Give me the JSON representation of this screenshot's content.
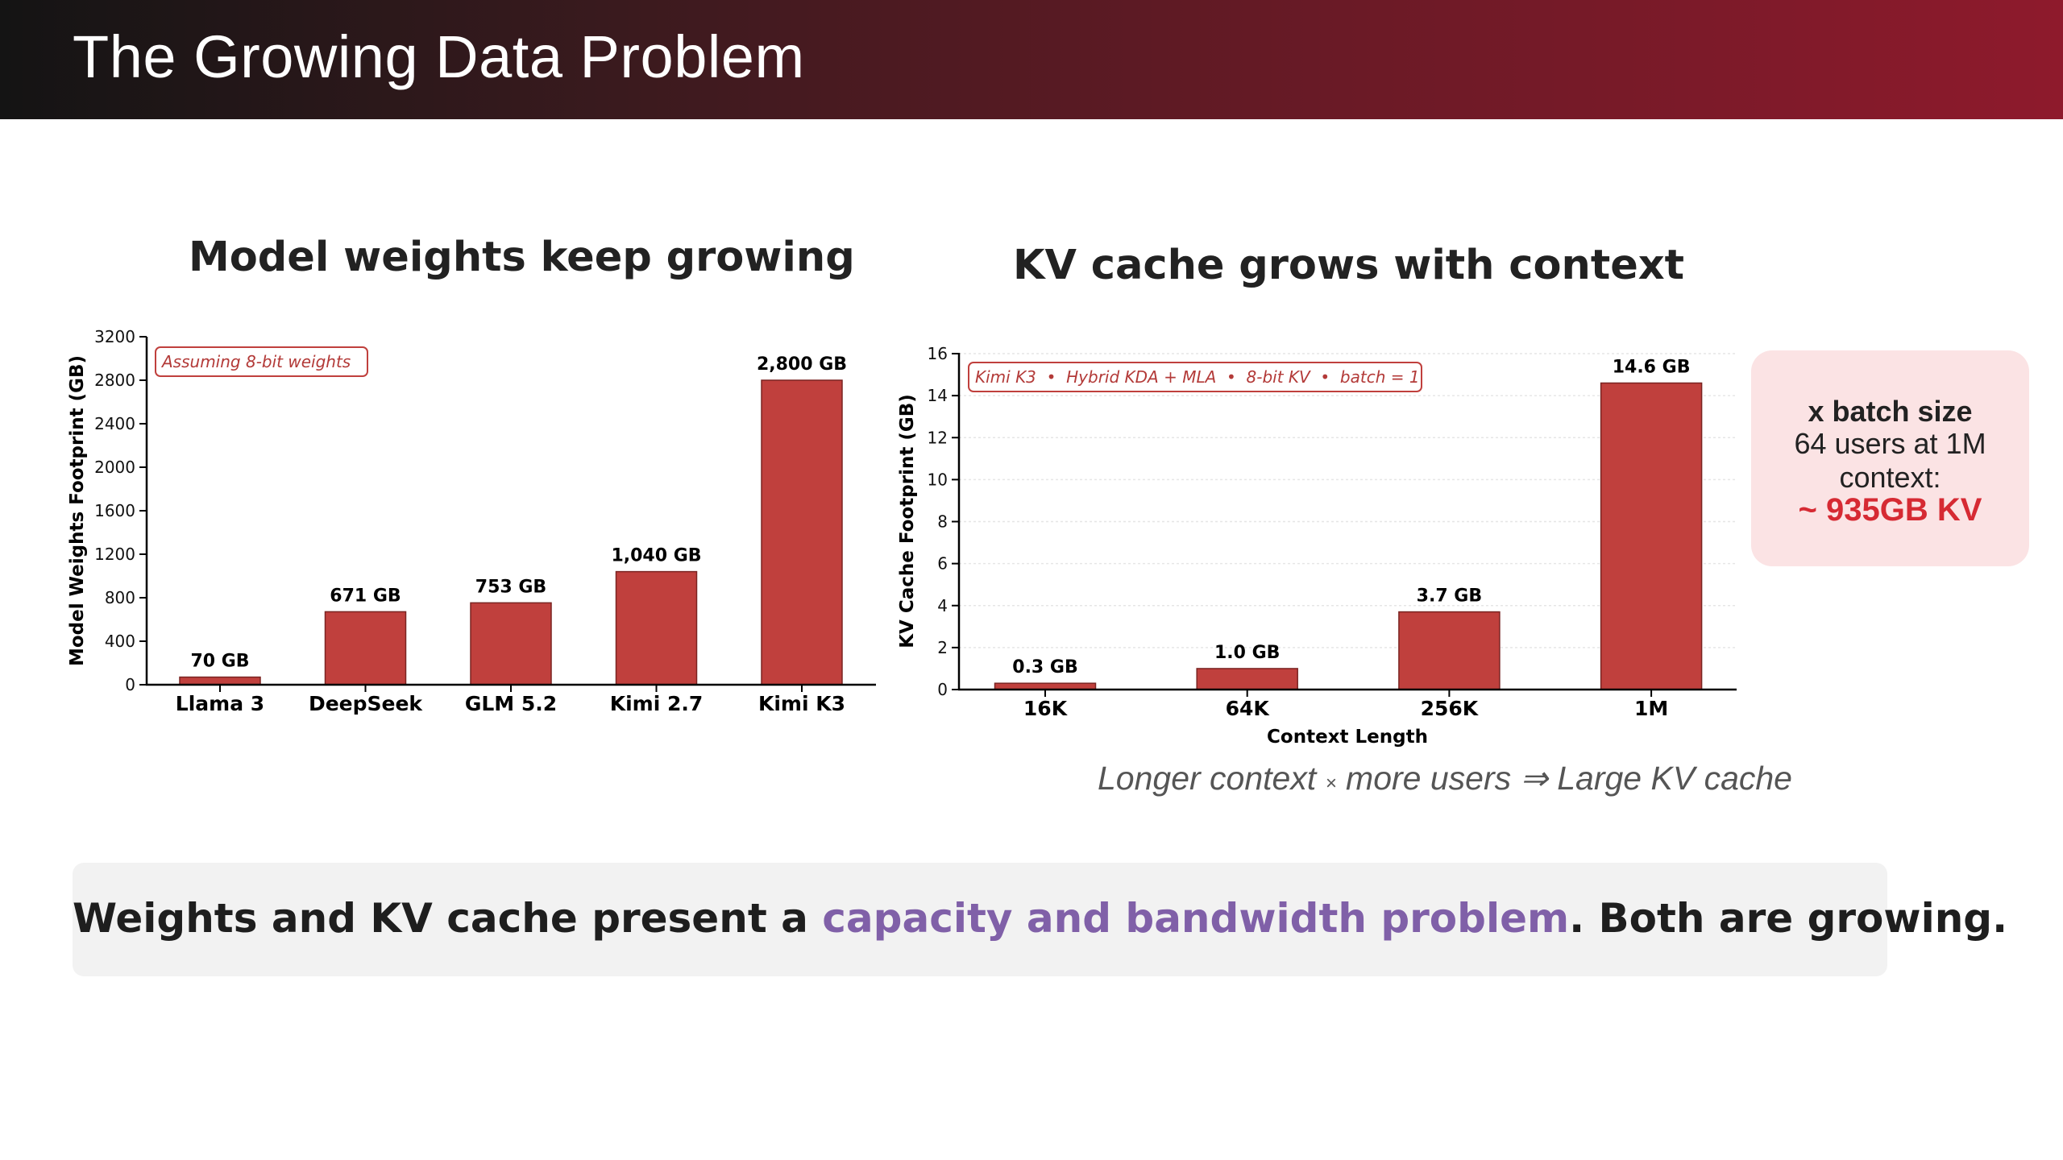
{
  "page": {
    "title": "The Growing Data Problem"
  },
  "left_chart": {
    "title": "Model weights keep growing",
    "note": "Assuming 8-bit weights",
    "ylabel": "Model Weights Footprint (GB)",
    "ytick_labels": [
      "0",
      "400",
      "800",
      "1200",
      "1600",
      "2000",
      "2400",
      "2800",
      "3200"
    ]
  },
  "right_chart": {
    "title": "KV cache grows with context",
    "note": "Kimi K3  •  Hybrid KDA + MLA  •  8-bit KV  •  batch = 1",
    "ylabel": "KV Cache Footprint (GB)",
    "xlabel": "Context Length",
    "ytick_labels": [
      "0",
      "2",
      "4",
      "6",
      "8",
      "10",
      "12",
      "14",
      "16"
    ],
    "caption": {
      "part1": "Longer context ",
      "times": "×",
      "part2": " more users ⇒ Large KV cache"
    }
  },
  "side_card": {
    "heading": "x batch size",
    "body": "64 users at 1M context:",
    "value": "~ 935GB KV"
  },
  "banner": {
    "before": "Weights and KV cache present a ",
    "highlight": "capacity and bandwidth problem",
    "after": ". Both are growing."
  },
  "colors": {
    "bar": "#c0403d",
    "highlight": "#8060a8",
    "accent": "#d62a33"
  },
  "chart_data": [
    {
      "type": "bar",
      "title": "Model weights keep growing",
      "categories": [
        "Llama 3",
        "DeepSeek",
        "GLM 5.2",
        "Kimi 2.7",
        "Kimi K3"
      ],
      "values": [
        70,
        671,
        753,
        1040,
        2800
      ],
      "data_labels": [
        "70 GB",
        "671 GB",
        "753 GB",
        "1,040 GB",
        "2,800 GB"
      ],
      "xlabel": "",
      "ylabel": "Model Weights Footprint (GB)",
      "ylim": [
        0,
        3200
      ],
      "yticks": [
        0,
        400,
        800,
        1200,
        1600,
        2000,
        2400,
        2800,
        3200
      ],
      "grid": false
    },
    {
      "type": "bar",
      "title": "KV cache grows with context",
      "categories": [
        "16K",
        "64K",
        "256K",
        "1M"
      ],
      "values": [
        0.3,
        1.0,
        3.7,
        14.6
      ],
      "data_labels": [
        "0.3 GB",
        "1.0 GB",
        "3.7 GB",
        "14.6 GB"
      ],
      "xlabel": "Context Length",
      "ylabel": "KV Cache Footprint (GB)",
      "ylim": [
        0,
        16
      ],
      "yticks": [
        0,
        2,
        4,
        6,
        8,
        10,
        12,
        14,
        16
      ],
      "grid": true
    }
  ]
}
